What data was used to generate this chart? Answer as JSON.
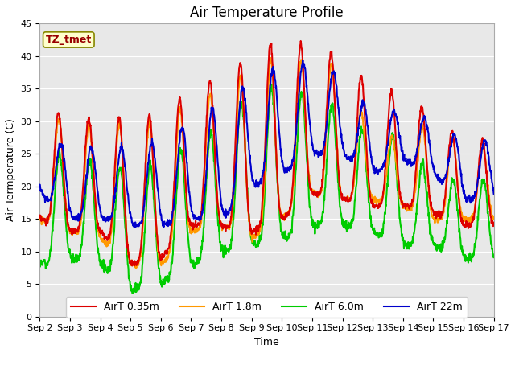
{
  "title": "Air Temperature Profile",
  "xlabel": "Time",
  "ylabel": "Air Termperature (C)",
  "ylim": [
    0,
    45
  ],
  "num_days": 15,
  "pts_per_day": 96,
  "x_tick_labels": [
    "Sep 2",
    "Sep 3",
    "Sep 4",
    "Sep 5",
    "Sep 6",
    "Sep 7",
    "Sep 8",
    "Sep 9",
    "Sep 10",
    "Sep 11",
    "Sep 12",
    "Sep 13",
    "Sep 14",
    "Sep 15",
    "Sep 16",
    "Sep 17"
  ],
  "legend_labels": [
    "AirT 0.35m",
    "AirT 1.8m",
    "AirT 6.0m",
    "AirT 22m"
  ],
  "color_red": "#dd0000",
  "color_orange": "#ff9900",
  "color_green": "#00cc00",
  "color_blue": "#0000cc",
  "annotation_text": "TZ_tmet",
  "annotation_fgcolor": "#990000",
  "annotation_bgcolor": "#ffffcc",
  "annotation_edgecolor": "#888800",
  "plot_bg": "#e8e8e8",
  "grid_color": "#ffffff",
  "title_fontsize": 12,
  "axis_fontsize": 9,
  "tick_fontsize": 8,
  "legend_fontsize": 9,
  "line_width": 1.5,
  "yticks": [
    0,
    5,
    10,
    15,
    20,
    25,
    30,
    35,
    40,
    45
  ],
  "red_peaks": [
    32,
    31,
    30,
    31,
    31,
    35,
    37,
    40,
    43,
    41,
    40,
    35,
    34,
    31,
    27
  ],
  "red_troughs": [
    15,
    13,
    13,
    8,
    9,
    14,
    14,
    13,
    15,
    19,
    18,
    17,
    17,
    16,
    14
  ],
  "ora_peaks": [
    31,
    30,
    29,
    30,
    30,
    33,
    35,
    38,
    40,
    39,
    39,
    27,
    28,
    30,
    26
  ],
  "ora_troughs": [
    15,
    13,
    12,
    8,
    8,
    13,
    14,
    12,
    15,
    19,
    18,
    18,
    17,
    15,
    15
  ],
  "grn_peaks": [
    25,
    25,
    23,
    23,
    23,
    27,
    29,
    35,
    35,
    34,
    32,
    27,
    28,
    21,
    21
  ],
  "grn_troughs": [
    8,
    9,
    8,
    4,
    5,
    8,
    10,
    11,
    12,
    14,
    14,
    13,
    11,
    11,
    9
  ],
  "blu_peaks": [
    28,
    26,
    26,
    26,
    27,
    30,
    33,
    36,
    39,
    39,
    37,
    31,
    32,
    30,
    27
  ],
  "blu_troughs": [
    19,
    15,
    15,
    14,
    14,
    15,
    15,
    20,
    22,
    25,
    25,
    22,
    24,
    22,
    18
  ],
  "red_phase": 0.62,
  "ora_phase": 0.63,
  "grn_phase": 0.65,
  "blu_phase": 0.7
}
